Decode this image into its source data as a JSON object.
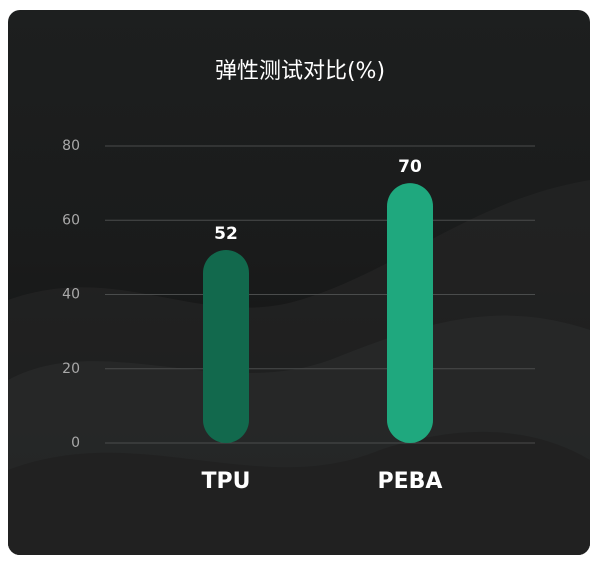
{
  "chart_data": {
    "type": "bar",
    "title": "弹性测试对比(%)",
    "categories": [
      "TPU",
      "PEBA"
    ],
    "values": [
      52,
      70
    ],
    "colors": [
      "#12694d",
      "#1fa87e"
    ],
    "ylim": [
      0,
      80
    ],
    "yticks": [
      0,
      20,
      40,
      60,
      80
    ],
    "grid": true
  }
}
